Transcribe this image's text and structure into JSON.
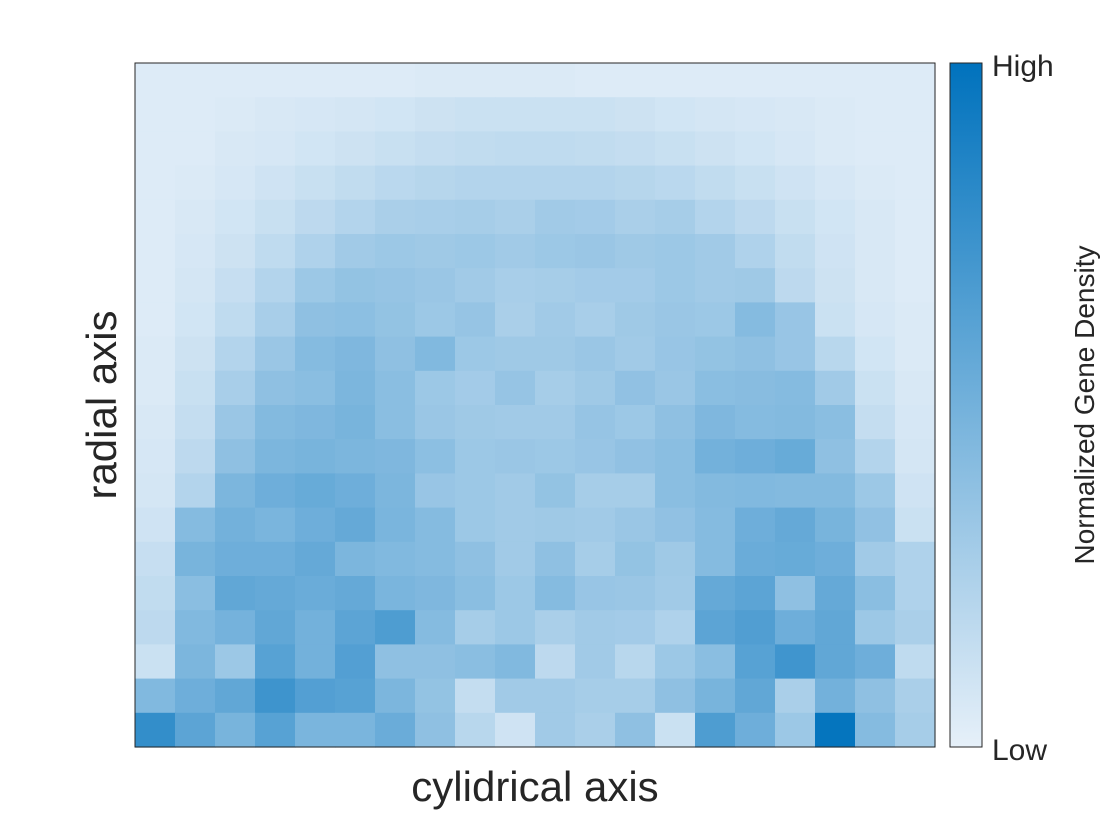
{
  "chart_data": {
    "type": "heatmap",
    "xlabel": "cylidrical axis",
    "ylabel": "radial axis",
    "colorbar": {
      "label": "Normalized Gene Density",
      "high_label": "High",
      "low_label": "Low",
      "low_color": "#E6F0F9",
      "high_color": "#0072BD"
    },
    "value_range": [
      0,
      1
    ],
    "rows_top_to_bottom": [
      [
        0.04,
        0.04,
        0.04,
        0.04,
        0.04,
        0.04,
        0.04,
        0.05,
        0.05,
        0.05,
        0.05,
        0.04,
        0.04,
        0.04,
        0.04,
        0.04,
        0.04,
        0.04,
        0.04,
        0.04
      ],
      [
        0.04,
        0.04,
        0.05,
        0.06,
        0.07,
        0.08,
        0.09,
        0.11,
        0.12,
        0.12,
        0.12,
        0.12,
        0.11,
        0.09,
        0.08,
        0.07,
        0.06,
        0.05,
        0.04,
        0.04
      ],
      [
        0.04,
        0.04,
        0.06,
        0.07,
        0.09,
        0.11,
        0.13,
        0.15,
        0.16,
        0.17,
        0.17,
        0.16,
        0.15,
        0.13,
        0.11,
        0.09,
        0.07,
        0.05,
        0.04,
        0.04
      ],
      [
        0.04,
        0.05,
        0.07,
        0.1,
        0.13,
        0.16,
        0.19,
        0.21,
        0.22,
        0.22,
        0.22,
        0.22,
        0.21,
        0.19,
        0.16,
        0.13,
        0.1,
        0.07,
        0.05,
        0.04
      ],
      [
        0.04,
        0.06,
        0.09,
        0.13,
        0.18,
        0.22,
        0.26,
        0.27,
        0.28,
        0.26,
        0.3,
        0.29,
        0.26,
        0.28,
        0.22,
        0.18,
        0.13,
        0.09,
        0.06,
        0.04
      ],
      [
        0.04,
        0.07,
        0.11,
        0.17,
        0.24,
        0.3,
        0.32,
        0.31,
        0.32,
        0.3,
        0.32,
        0.33,
        0.31,
        0.32,
        0.3,
        0.24,
        0.16,
        0.1,
        0.06,
        0.04
      ],
      [
        0.04,
        0.08,
        0.14,
        0.22,
        0.32,
        0.36,
        0.35,
        0.33,
        0.3,
        0.27,
        0.28,
        0.29,
        0.29,
        0.32,
        0.3,
        0.31,
        0.18,
        0.11,
        0.06,
        0.04
      ],
      [
        0.04,
        0.09,
        0.17,
        0.27,
        0.38,
        0.39,
        0.36,
        0.32,
        0.35,
        0.26,
        0.3,
        0.27,
        0.31,
        0.33,
        0.32,
        0.42,
        0.34,
        0.12,
        0.07,
        0.05
      ],
      [
        0.05,
        0.11,
        0.22,
        0.33,
        0.42,
        0.45,
        0.38,
        0.44,
        0.32,
        0.31,
        0.31,
        0.33,
        0.3,
        0.34,
        0.36,
        0.38,
        0.34,
        0.2,
        0.09,
        0.05
      ],
      [
        0.05,
        0.13,
        0.27,
        0.38,
        0.4,
        0.46,
        0.4,
        0.32,
        0.29,
        0.35,
        0.28,
        0.31,
        0.37,
        0.33,
        0.4,
        0.41,
        0.42,
        0.3,
        0.12,
        0.06
      ],
      [
        0.06,
        0.15,
        0.33,
        0.43,
        0.45,
        0.48,
        0.4,
        0.33,
        0.31,
        0.3,
        0.3,
        0.35,
        0.32,
        0.38,
        0.45,
        0.42,
        0.43,
        0.4,
        0.15,
        0.07
      ],
      [
        0.07,
        0.18,
        0.38,
        0.46,
        0.48,
        0.46,
        0.45,
        0.39,
        0.32,
        0.33,
        0.32,
        0.34,
        0.37,
        0.4,
        0.5,
        0.52,
        0.55,
        0.38,
        0.22,
        0.08
      ],
      [
        0.08,
        0.22,
        0.46,
        0.52,
        0.55,
        0.52,
        0.46,
        0.34,
        0.32,
        0.3,
        0.36,
        0.28,
        0.28,
        0.4,
        0.43,
        0.44,
        0.43,
        0.43,
        0.32,
        0.1
      ],
      [
        0.1,
        0.42,
        0.5,
        0.47,
        0.52,
        0.56,
        0.47,
        0.42,
        0.32,
        0.3,
        0.31,
        0.3,
        0.33,
        0.37,
        0.42,
        0.52,
        0.56,
        0.48,
        0.37,
        0.12
      ],
      [
        0.14,
        0.48,
        0.52,
        0.52,
        0.56,
        0.46,
        0.44,
        0.42,
        0.38,
        0.3,
        0.38,
        0.28,
        0.36,
        0.31,
        0.42,
        0.54,
        0.55,
        0.52,
        0.3,
        0.24
      ],
      [
        0.16,
        0.4,
        0.58,
        0.56,
        0.54,
        0.56,
        0.47,
        0.45,
        0.4,
        0.32,
        0.42,
        0.34,
        0.33,
        0.3,
        0.56,
        0.6,
        0.38,
        0.56,
        0.4,
        0.24
      ],
      [
        0.18,
        0.44,
        0.49,
        0.58,
        0.5,
        0.6,
        0.66,
        0.42,
        0.28,
        0.32,
        0.26,
        0.3,
        0.29,
        0.24,
        0.6,
        0.65,
        0.52,
        0.58,
        0.32,
        0.26
      ],
      [
        0.12,
        0.46,
        0.32,
        0.62,
        0.5,
        0.64,
        0.38,
        0.38,
        0.4,
        0.44,
        0.18,
        0.3,
        0.2,
        0.32,
        0.4,
        0.62,
        0.72,
        0.58,
        0.52,
        0.17
      ],
      [
        0.44,
        0.52,
        0.58,
        0.73,
        0.64,
        0.62,
        0.46,
        0.36,
        0.15,
        0.3,
        0.3,
        0.28,
        0.28,
        0.38,
        0.48,
        0.58,
        0.26,
        0.5,
        0.38,
        0.26
      ],
      [
        0.78,
        0.6,
        0.48,
        0.62,
        0.47,
        0.47,
        0.54,
        0.38,
        0.2,
        0.1,
        0.3,
        0.26,
        0.38,
        0.12,
        0.66,
        0.52,
        0.32,
        0.98,
        0.42,
        0.28
      ]
    ]
  }
}
